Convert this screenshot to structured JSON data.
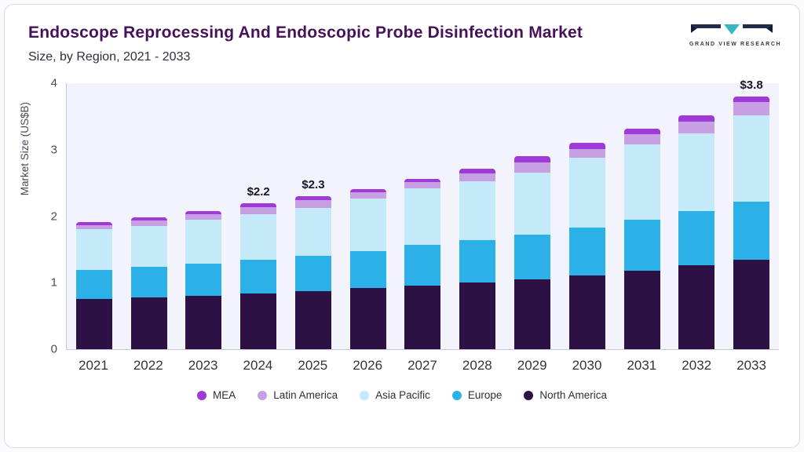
{
  "header": {
    "title": "Endoscope Reprocessing And Endoscopic Probe Disinfection Market",
    "subtitle": "Size, by Region, 2021 - 2033"
  },
  "logo": {
    "text": "GRAND VIEW RESEARCH",
    "colors": {
      "dark": "#1f2a4d",
      "teal": "#37b6c6"
    }
  },
  "chart_data": {
    "type": "bar",
    "stacked": true,
    "title": "Endoscope Reprocessing And Endoscopic Probe Disinfection Market Size, by Region, 2021 - 2033",
    "xlabel": "",
    "ylabel": "Market Size (US$B)",
    "ylim": [
      0,
      4
    ],
    "yticks": [
      0,
      1,
      2,
      3,
      4
    ],
    "grid": false,
    "legend_position": "bottom",
    "categories": [
      "2021",
      "2022",
      "2023",
      "2024",
      "2025",
      "2026",
      "2027",
      "2028",
      "2029",
      "2030",
      "2031",
      "2032",
      "2033"
    ],
    "series": [
      {
        "name": "North America",
        "color": "#2d1145",
        "values": [
          0.75,
          0.78,
          0.8,
          0.84,
          0.87,
          0.92,
          0.96,
          1.0,
          1.05,
          1.11,
          1.18,
          1.26,
          1.35
        ]
      },
      {
        "name": "Europe",
        "color": "#2bb0e8",
        "values": [
          0.44,
          0.46,
          0.49,
          0.51,
          0.53,
          0.55,
          0.61,
          0.64,
          0.67,
          0.72,
          0.77,
          0.82,
          0.87
        ]
      },
      {
        "name": "Asia Pacific",
        "color": "#c4e9f9",
        "values": [
          0.61,
          0.61,
          0.66,
          0.68,
          0.72,
          0.8,
          0.85,
          0.88,
          0.94,
          1.05,
          1.13,
          1.17,
          1.3
        ]
      },
      {
        "name": "Latin America",
        "color": "#c79fe3",
        "values": [
          0.07,
          0.08,
          0.08,
          0.11,
          0.12,
          0.09,
          0.09,
          0.12,
          0.15,
          0.13,
          0.15,
          0.17,
          0.2
        ]
      },
      {
        "name": "MEA",
        "color": "#9e3bd8",
        "values": [
          0.04,
          0.05,
          0.05,
          0.06,
          0.06,
          0.05,
          0.05,
          0.07,
          0.09,
          0.09,
          0.09,
          0.1,
          0.08
        ]
      }
    ],
    "bar_labels": {
      "2024": "$2.2",
      "2025": "$2.3",
      "2033": "$3.8"
    },
    "totals": [
      1.91,
      1.98,
      2.08,
      2.2,
      2.3,
      2.41,
      2.56,
      2.71,
      2.9,
      3.1,
      3.32,
      3.52,
      3.8
    ],
    "legend_order": [
      "MEA",
      "Latin America",
      "Asia Pacific",
      "Europe",
      "North America"
    ]
  }
}
